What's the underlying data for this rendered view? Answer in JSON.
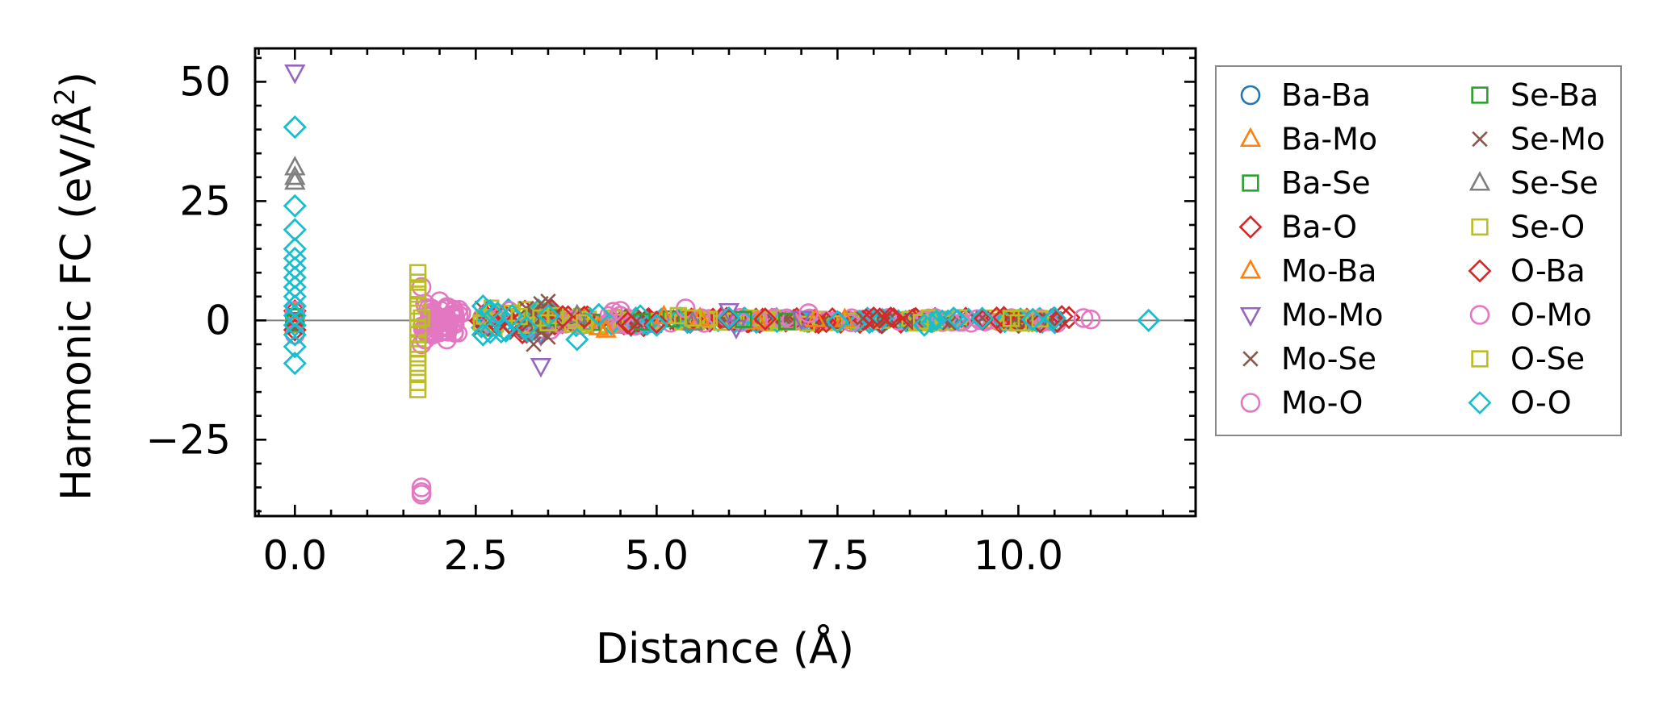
{
  "chart_data": {
    "type": "scatter",
    "title": "",
    "xlabel": "Distance (Å)",
    "ylabel": "Harmonic FC (eV/Å²)",
    "ylabel_parts": {
      "main": "Harmonic FC (eV/Å",
      "sup": "2",
      "close": ")"
    },
    "xlim": [
      -0.55,
      12.45
    ],
    "ylim": [
      -41,
      57
    ],
    "xticks": [
      0.0,
      2.5,
      5.0,
      7.5,
      10.0
    ],
    "xtick_labels": [
      "0.0",
      "2.5",
      "5.0",
      "7.5",
      "10.0"
    ],
    "yticks": [
      -25,
      0,
      25,
      50
    ],
    "ytick_labels": [
      "−25",
      "0",
      "25",
      "50"
    ],
    "zero_line": 0,
    "legend_position": "outside-right",
    "series": [
      {
        "name": "Ba-Ba",
        "marker": "circle",
        "color": "#1f77b4",
        "points": [
          [
            0,
            0.5
          ],
          [
            0,
            -0.3
          ]
        ]
      },
      {
        "name": "Ba-Mo",
        "marker": "triangle-up",
        "color": "#ff7f0e",
        "points": [
          [
            0,
            1.5
          ],
          [
            3.4,
            0.8
          ],
          [
            4.3,
            -2.0
          ],
          [
            5.6,
            0.4
          ],
          [
            6.4,
            -0.3
          ],
          [
            7.6,
            0.2
          ]
        ]
      },
      {
        "name": "Ba-Se",
        "marker": "square",
        "color": "#2ca02c",
        "points": [
          [
            0,
            0.8
          ],
          [
            3.3,
            0.5
          ],
          [
            4.1,
            -0.4
          ],
          [
            5.2,
            0.3
          ],
          [
            6.8,
            -0.2
          ]
        ]
      },
      {
        "name": "Ba-O",
        "marker": "diamond",
        "color": "#d62728",
        "points": [
          [
            0,
            2.0
          ],
          [
            2.9,
            1.0
          ],
          [
            3.1,
            -0.6
          ],
          [
            4.0,
            0.7
          ],
          [
            5.0,
            -0.4
          ],
          [
            6.5,
            0.3
          ],
          [
            8.0,
            0.5
          ],
          [
            9.8,
            0.6
          ],
          [
            10.0,
            -0.3
          ],
          [
            10.7,
            0.6
          ]
        ]
      },
      {
        "name": "Mo-Ba",
        "marker": "triangle-up",
        "color": "#ff7f0e",
        "points": [
          [
            0,
            -1.0
          ],
          [
            3.5,
            1.2
          ],
          [
            4.2,
            -1.5
          ],
          [
            5.1,
            0.8
          ],
          [
            7.2,
            0.2
          ]
        ]
      },
      {
        "name": "Mo-Mo",
        "marker": "triangle-down",
        "color": "#9467bd",
        "points": [
          [
            0,
            52.0
          ],
          [
            0,
            0
          ],
          [
            3.4,
            -9.5
          ],
          [
            3.4,
            -3.0
          ],
          [
            6.0,
            2.0
          ],
          [
            6.1,
            -1.5
          ],
          [
            7.0,
            0.4
          ]
        ]
      },
      {
        "name": "Mo-Se",
        "marker": "x",
        "color": "#8c564b",
        "points": [
          [
            0,
            1.0
          ],
          [
            3.2,
            2.5
          ],
          [
            3.3,
            -5.0
          ],
          [
            3.4,
            3.5
          ],
          [
            3.4,
            -2.5
          ],
          [
            3.5,
            4.0
          ],
          [
            3.3,
            -1.5
          ]
        ]
      },
      {
        "name": "Mo-O",
        "marker": "circle",
        "color": "#e377c2",
        "points": [
          [
            0,
            2.0
          ],
          [
            1.75,
            -35.0
          ],
          [
            1.75,
            -36.5
          ],
          [
            1.75,
            7.0
          ],
          [
            1.75,
            -5.0
          ],
          [
            1.8,
            3.5
          ],
          [
            1.9,
            -3.0
          ],
          [
            2.0,
            4.0
          ],
          [
            2.1,
            -4.0
          ],
          [
            2.2,
            2.0
          ],
          [
            4.5,
            2.0
          ],
          [
            5.4,
            2.5
          ],
          [
            7.1,
            1.5
          ]
        ]
      },
      {
        "name": "Se-Ba",
        "marker": "square",
        "color": "#2ca02c",
        "points": [
          [
            0,
            -0.5
          ],
          [
            3.6,
            0.6
          ],
          [
            4.8,
            -0.3
          ],
          [
            6.2,
            0.2
          ]
        ]
      },
      {
        "name": "Se-Mo",
        "marker": "x",
        "color": "#8c564b",
        "points": [
          [
            0,
            -1.5
          ],
          [
            3.3,
            1.5
          ],
          [
            3.5,
            -3.5
          ],
          [
            3.4,
            0.5
          ]
        ]
      },
      {
        "name": "Se-Se",
        "marker": "triangle-up",
        "color": "#7f7f7f",
        "points": [
          [
            0,
            32.0
          ],
          [
            0,
            30.0
          ],
          [
            0,
            29.0
          ],
          [
            3.9,
            1.0
          ],
          [
            5.5,
            -0.5
          ]
        ]
      },
      {
        "name": "Se-O",
        "marker": "square",
        "color": "#bcbd22",
        "points": [
          [
            1.7,
            10.0
          ],
          [
            1.7,
            8.0
          ],
          [
            1.7,
            5.5
          ],
          [
            1.7,
            3.0
          ],
          [
            1.7,
            1.5
          ],
          [
            1.7,
            -1.5
          ],
          [
            1.7,
            -3.0
          ],
          [
            1.7,
            -5.0
          ],
          [
            1.7,
            -7.0
          ],
          [
            1.7,
            -9.0
          ],
          [
            1.7,
            -11.0
          ],
          [
            1.7,
            -13.0
          ],
          [
            1.7,
            -14.5
          ],
          [
            3.0,
            1.5
          ],
          [
            3.2,
            -1.0
          ],
          [
            3.4,
            0.5
          ],
          [
            3.6,
            1.0
          ],
          [
            4.0,
            -0.5
          ],
          [
            5.5,
            0.5
          ],
          [
            10.0,
            -0.5
          ],
          [
            10.3,
            0.3
          ]
        ]
      },
      {
        "name": "O-Ba",
        "marker": "diamond",
        "color": "#d62728",
        "points": [
          [
            0,
            -2.0
          ],
          [
            3.0,
            -1.0
          ],
          [
            3.7,
            0.8
          ],
          [
            4.6,
            -0.5
          ],
          [
            6.0,
            0.2
          ],
          [
            9.7,
            0.5
          ],
          [
            10.6,
            0.8
          ]
        ]
      },
      {
        "name": "O-Mo",
        "marker": "circle",
        "color": "#e377c2",
        "points": [
          [
            0,
            -3.0
          ],
          [
            1.75,
            -36.0
          ],
          [
            1.8,
            -4.0
          ],
          [
            1.85,
            2.5
          ],
          [
            2.0,
            -2.5
          ],
          [
            2.3,
            1.5
          ],
          [
            4.4,
            1.8
          ],
          [
            10.9,
            0.5
          ],
          [
            11.0,
            0.2
          ]
        ]
      },
      {
        "name": "O-Se",
        "marker": "square",
        "color": "#bcbd22",
        "points": [
          [
            1.7,
            6.5
          ],
          [
            1.7,
            -6.0
          ],
          [
            1.75,
            0.5
          ],
          [
            3.1,
            0.8
          ],
          [
            3.5,
            -0.5
          ],
          [
            5.3,
            1.0
          ],
          [
            9.9,
            0.4
          ]
        ]
      },
      {
        "name": "O-O",
        "marker": "diamond",
        "color": "#17becf",
        "points": [
          [
            0,
            40.5
          ],
          [
            0,
            24.0
          ],
          [
            0,
            19.0
          ],
          [
            0,
            15.0
          ],
          [
            0,
            13.0
          ],
          [
            0,
            11.0
          ],
          [
            0,
            9.0
          ],
          [
            0,
            7.0
          ],
          [
            0,
            5.0
          ],
          [
            0,
            3.0
          ],
          [
            0,
            1.0
          ],
          [
            0,
            -1.0
          ],
          [
            0,
            -3.0
          ],
          [
            0,
            -5.5
          ],
          [
            0,
            -9.0
          ],
          [
            2.6,
            3.0
          ],
          [
            2.6,
            -3.0
          ],
          [
            2.7,
            2.0
          ],
          [
            2.7,
            -2.5
          ],
          [
            2.8,
            1.5
          ],
          [
            2.9,
            -2.0
          ],
          [
            3.0,
            1.0
          ],
          [
            3.2,
            -1.5
          ],
          [
            3.5,
            1.0
          ],
          [
            3.9,
            -4.0
          ],
          [
            4.2,
            1.2
          ],
          [
            5.0,
            -1.0
          ],
          [
            6.0,
            0.5
          ],
          [
            7.5,
            -0.3
          ],
          [
            8.7,
            -1.0
          ],
          [
            9.5,
            0.4
          ],
          [
            10.2,
            0.2
          ],
          [
            10.5,
            0.5
          ],
          [
            11.8,
            0.0
          ]
        ]
      }
    ],
    "legend_columns": [
      [
        "Ba-Ba",
        "Ba-Mo",
        "Ba-Se",
        "Ba-O",
        "Mo-Ba",
        "Mo-Mo",
        "Mo-Se",
        "Mo-O"
      ],
      [
        "Se-Ba",
        "Se-Mo",
        "Se-Se",
        "Se-O",
        "O-Ba",
        "O-Mo",
        "O-Se",
        "O-O"
      ]
    ]
  }
}
